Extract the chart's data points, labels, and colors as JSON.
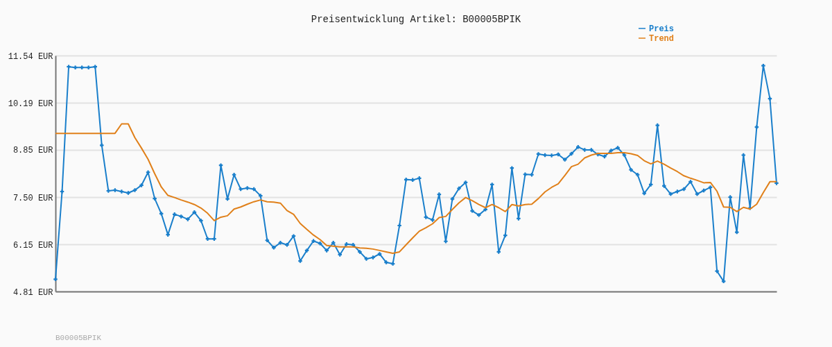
{
  "chart_data": {
    "type": "line",
    "title": "Preisentwicklung Artikel: B00005BPIK",
    "categories": [
      null,
      null,
      null,
      null,
      null,
      null,
      null,
      null,
      null,
      null,
      null,
      null,
      null,
      null,
      null,
      null,
      null,
      null,
      null,
      null,
      null,
      null,
      null,
      null,
      null,
      null,
      null,
      null,
      null,
      null,
      null,
      null,
      null,
      null,
      null,
      null,
      null,
      null,
      null,
      null,
      null,
      null,
      null,
      null,
      null,
      null,
      null,
      null,
      null,
      null,
      null,
      null,
      null,
      null,
      null,
      null,
      null,
      null,
      null,
      null,
      null,
      null,
      null,
      null,
      null,
      null,
      null,
      null,
      null,
      null,
      null,
      null,
      null,
      null,
      null,
      null,
      null,
      null,
      null,
      null,
      null,
      null,
      null,
      null,
      null,
      null,
      null,
      null,
      null,
      null,
      null,
      null,
      null,
      null,
      null,
      null,
      null,
      null,
      null,
      null,
      null,
      null,
      null,
      null,
      null,
      null,
      null,
      null,
      null,
      null
    ],
    "series": [
      {
        "name": "Preis",
        "color": "#1a7fcb",
        "marker": "cross",
        "values": [
          5.16,
          7.66,
          11.22,
          11.2,
          11.2,
          11.2,
          11.22,
          8.98,
          7.68,
          7.7,
          7.66,
          7.62,
          7.7,
          7.84,
          8.21,
          7.46,
          7.03,
          6.43,
          7.01,
          6.95,
          6.87,
          7.07,
          6.83,
          6.31,
          6.31,
          8.41,
          7.45,
          8.14,
          7.73,
          7.76,
          7.73,
          7.54,
          6.27,
          6.06,
          6.2,
          6.14,
          6.39,
          5.68,
          5.98,
          6.25,
          6.18,
          5.98,
          6.2,
          5.86,
          6.16,
          6.14,
          5.94,
          5.74,
          5.78,
          5.88,
          5.64,
          5.6,
          6.69,
          8.0,
          7.99,
          8.04,
          6.93,
          6.85,
          7.58,
          6.24,
          7.45,
          7.75,
          7.92,
          7.11,
          6.99,
          7.15,
          7.86,
          5.94,
          6.41,
          8.33,
          6.89,
          8.15,
          8.14,
          8.73,
          8.7,
          8.69,
          8.72,
          8.57,
          8.74,
          8.93,
          8.85,
          8.85,
          8.72,
          8.66,
          8.83,
          8.91,
          8.7,
          8.28,
          8.14,
          7.61,
          7.86,
          9.55,
          7.82,
          7.59,
          7.66,
          7.73,
          7.94,
          7.59,
          7.69,
          7.78,
          5.39,
          5.1,
          7.5,
          6.5,
          8.7,
          7.19,
          9.5,
          11.25,
          10.31,
          7.9
        ]
      },
      {
        "name": "Trend",
        "color": "#e0801a",
        "values": [
          9.32,
          9.32,
          9.32,
          9.32,
          9.32,
          9.32,
          9.32,
          9.32,
          9.32,
          9.32,
          9.59,
          9.59,
          9.2,
          8.9,
          8.58,
          8.17,
          7.79,
          7.55,
          7.49,
          7.42,
          7.36,
          7.29,
          7.19,
          7.04,
          6.83,
          6.93,
          6.97,
          7.16,
          7.22,
          7.3,
          7.37,
          7.42,
          7.37,
          7.36,
          7.33,
          7.12,
          7.01,
          6.75,
          6.58,
          6.42,
          6.29,
          6.12,
          6.1,
          6.08,
          6.08,
          6.08,
          6.05,
          6.04,
          6.02,
          5.98,
          5.94,
          5.9,
          5.94,
          6.14,
          6.34,
          6.53,
          6.63,
          6.74,
          6.92,
          6.95,
          7.15,
          7.34,
          7.49,
          7.4,
          7.29,
          7.2,
          7.29,
          7.2,
          7.09,
          7.29,
          7.25,
          7.29,
          7.3,
          7.46,
          7.65,
          7.78,
          7.88,
          8.12,
          8.37,
          8.44,
          8.62,
          8.7,
          8.75,
          8.75,
          8.75,
          8.77,
          8.77,
          8.74,
          8.69,
          8.54,
          8.45,
          8.53,
          8.44,
          8.33,
          8.23,
          8.11,
          8.04,
          7.98,
          7.91,
          7.92,
          7.67,
          7.22,
          7.21,
          7.09,
          7.21,
          7.16,
          7.3,
          7.63,
          7.94,
          7.94
        ]
      }
    ],
    "ylim": [
      4.81,
      11.54
    ],
    "yticks": [
      {
        "value": 4.81,
        "label": "4.81 EUR"
      },
      {
        "value": 6.15,
        "label": "6.15 EUR"
      },
      {
        "value": 7.5,
        "label": "7.50 EUR"
      },
      {
        "value": 8.85,
        "label": "8.85 EUR"
      },
      {
        "value": 10.19,
        "label": "10.19 EUR"
      },
      {
        "value": 11.54,
        "label": "11.54 EUR"
      }
    ],
    "grid": "y",
    "legend": "top right",
    "annotations": [
      "B00005BPIK"
    ]
  }
}
